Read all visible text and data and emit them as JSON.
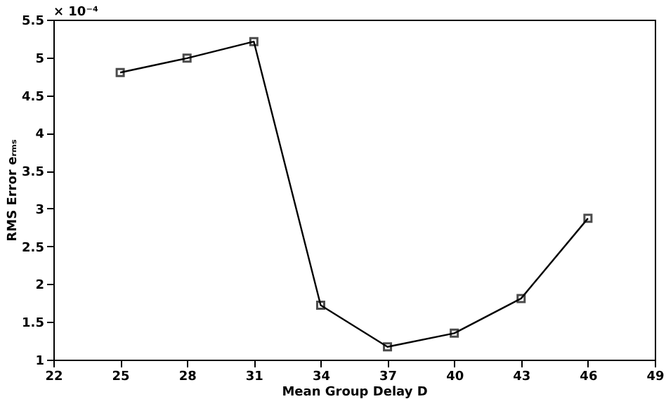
{
  "chart_data": {
    "type": "line",
    "xlabel": "Mean Group Delay D",
    "ylabel": "RMS Error eᵣₘₛ",
    "annotations": [
      "× 10⁻⁴"
    ],
    "x": [
      25,
      28,
      31,
      34,
      37,
      40,
      43,
      46
    ],
    "series": [
      {
        "color": "#000000",
        "values": [
          4.8,
          4.99,
          5.21,
          1.72,
          1.17,
          1.35,
          1.81,
          2.87
        ]
      }
    ],
    "xlim": [
      22,
      49
    ],
    "xticks": [
      22,
      25,
      28,
      31,
      34,
      37,
      40,
      43,
      46,
      49
    ],
    "ylim": [
      1,
      5.5
    ],
    "yticks": [
      1,
      1.5,
      2,
      2.5,
      3,
      3.5,
      4,
      4.5,
      5,
      5.5
    ],
    "grid": false,
    "marker": "square",
    "line_style": "solid"
  }
}
